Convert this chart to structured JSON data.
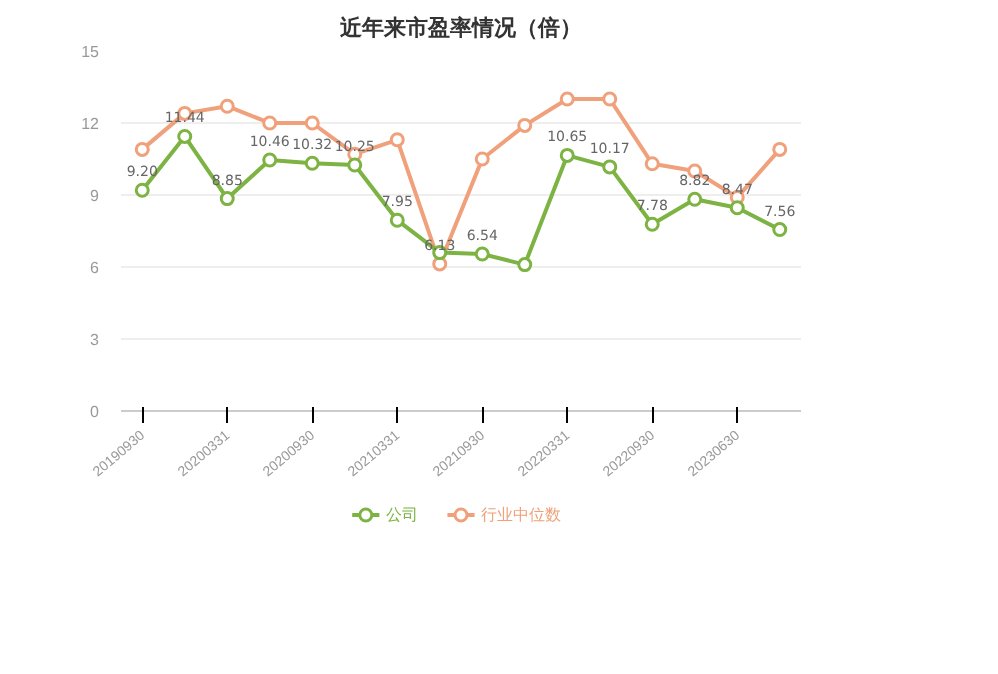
{
  "chart_data": {
    "type": "line",
    "title": "近年来市盈率情况（倍）",
    "categories": [
      "20190930",
      null,
      "20200331",
      null,
      "20200930",
      null,
      "20210331",
      null,
      "20210930",
      null,
      "20220331",
      null,
      "20220930",
      null,
      "20230630",
      null
    ],
    "series": [
      {
        "name": "公司",
        "color": "#7cb342",
        "values": [
          9.2,
          11.44,
          8.85,
          10.46,
          10.32,
          10.25,
          7.95,
          6.6,
          6.54,
          6.1,
          10.65,
          10.17,
          7.78,
          8.82,
          8.47,
          7.56
        ],
        "value_labels": [
          "9.20",
          "11.44",
          "8.85",
          "10.46",
          "10.32",
          "10.25",
          "7.95",
          null,
          "6.54",
          null,
          "10.65",
          "10.17",
          "7.78",
          "8.82",
          "8.47",
          "7.56"
        ]
      },
      {
        "name": "行业中位数",
        "color": "#f0a07a",
        "values": [
          10.9,
          12.4,
          12.7,
          12.0,
          12.0,
          10.7,
          11.3,
          6.13,
          10.5,
          11.9,
          13.0,
          13.0,
          10.3,
          10.0,
          8.9,
          10.9
        ],
        "value_labels": [
          null,
          null,
          null,
          null,
          null,
          null,
          null,
          "6.13",
          null,
          null,
          null,
          null,
          null,
          null,
          null,
          null
        ]
      }
    ],
    "ylim": [
      0,
      15
    ],
    "yticks": [
      0,
      3,
      6,
      9,
      12,
      15
    ],
    "grid": "y",
    "legend": "bottom",
    "marker": "circle",
    "line_style": "solid"
  }
}
